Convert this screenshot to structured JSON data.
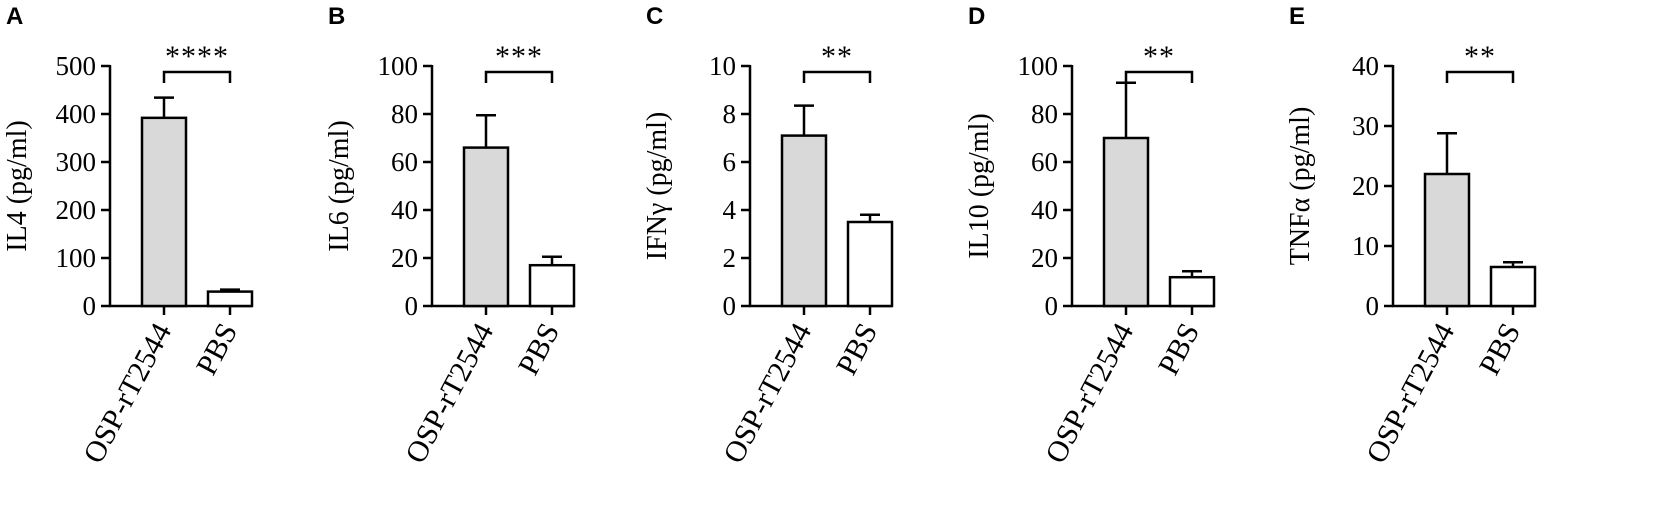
{
  "chart_data": [
    {
      "panel": "A",
      "type": "bar",
      "categories": [
        "OSP-rT2544",
        "PBS"
      ],
      "values": [
        392,
        30
      ],
      "errors": [
        42,
        4
      ],
      "ylabel": "IL4 (pg/ml)",
      "ylim": [
        0,
        500
      ],
      "yticks": [
        0,
        100,
        200,
        300,
        400,
        500
      ],
      "significance": "****",
      "bar_colors": [
        "#d9d9d9",
        "#ffffff"
      ]
    },
    {
      "panel": "B",
      "type": "bar",
      "categories": [
        "OSP-rT2544",
        "PBS"
      ],
      "values": [
        66,
        17
      ],
      "errors": [
        13.5,
        3.5
      ],
      "ylabel": "IL6 (pg/ml)",
      "ylim": [
        0,
        100
      ],
      "yticks": [
        0,
        20,
        40,
        60,
        80,
        100
      ],
      "significance": "***",
      "bar_colors": [
        "#d9d9d9",
        "#ffffff"
      ]
    },
    {
      "panel": "C",
      "type": "bar",
      "categories": [
        "OSP-rT2544",
        "PBS"
      ],
      "values": [
        7.1,
        3.5
      ],
      "errors": [
        1.25,
        0.3
      ],
      "ylabel": "IFNγ (pg/ml)",
      "ylim": [
        0,
        10
      ],
      "yticks": [
        0,
        2,
        4,
        6,
        8,
        10
      ],
      "significance": "**",
      "bar_colors": [
        "#d9d9d9",
        "#ffffff"
      ]
    },
    {
      "panel": "D",
      "type": "bar",
      "categories": [
        "OSP-rT2544",
        "PBS"
      ],
      "values": [
        70,
        12
      ],
      "errors": [
        23,
        2.5
      ],
      "ylabel": "IL10 (pg/ml)",
      "ylim": [
        0,
        100
      ],
      "yticks": [
        0,
        20,
        40,
        60,
        80,
        100
      ],
      "significance": "**",
      "bar_colors": [
        "#d9d9d9",
        "#ffffff"
      ]
    },
    {
      "panel": "E",
      "type": "bar",
      "categories": [
        "OSP-rT2544",
        "PBS"
      ],
      "values": [
        22,
        6.5
      ],
      "errors": [
        6.8,
        0.8
      ],
      "ylabel": "TNFα (pg/ml)",
      "ylim": [
        0,
        40
      ],
      "yticks": [
        0,
        10,
        20,
        30,
        40
      ],
      "significance": "**",
      "bar_colors": [
        "#d9d9d9",
        "#ffffff"
      ]
    }
  ]
}
